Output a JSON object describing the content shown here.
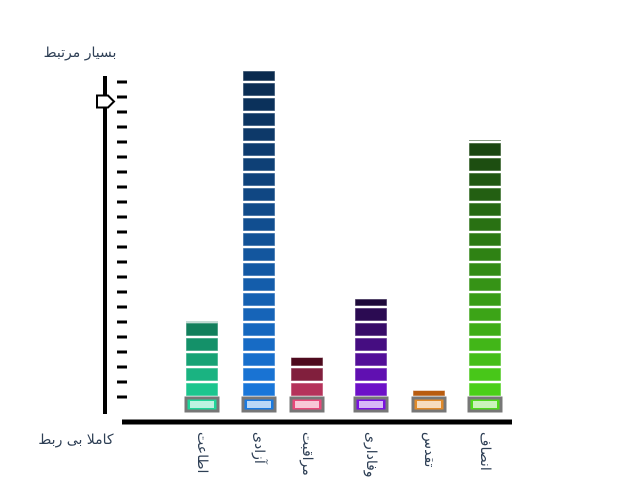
{
  "chart_data": {
    "type": "bar",
    "top_label": "بسیار مرتبط",
    "bottom_label": "کاملا بی ربط",
    "categories": [
      "اطاعت",
      "آزادی",
      "مراقبت",
      "وفاداری",
      "تقدس",
      "انصاف"
    ],
    "values": [
      6.1,
      22.8,
      3.7,
      7.6,
      1.5,
      18.2
    ],
    "color_low": [
      "#1fd69a",
      "#1a7ae0",
      "#e8487a",
      "#7a12e0",
      "#e08a2a",
      "#4ed81a"
    ],
    "color_high": [
      "#0f6e50",
      "#0a2a4e",
      "#4e0a1e",
      "#1e0a3a",
      "#b85c10",
      "#173d10"
    ],
    "ylim": [
      0,
      23
    ],
    "yticks": [
      1,
      2,
      3,
      4,
      5,
      6,
      7,
      8,
      9,
      10,
      11,
      12,
      13,
      14,
      15,
      16,
      17,
      18,
      19,
      20,
      21,
      22
    ],
    "slider_value": 20.7
  }
}
